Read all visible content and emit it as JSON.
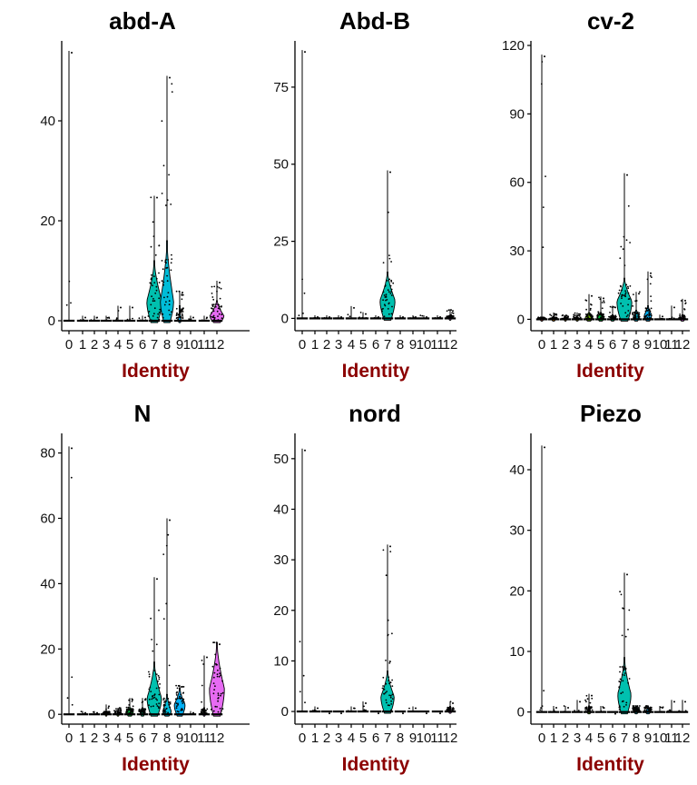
{
  "colors": {
    "xlabel": "#8b0000",
    "clusters": [
      "#f8766d",
      "#e58700",
      "#c99800",
      "#a3a500",
      "#6bb100",
      "#00ba38",
      "#00bf7d",
      "#00c0af",
      "#00bcd8",
      "#00b0f6",
      "#619cff",
      "#b983ff",
      "#e76bf3"
    ]
  },
  "chart_data": [
    {
      "type": "violin",
      "title": "abd-A",
      "xlabel": "Identity",
      "categories": [
        "0",
        "1",
        "2",
        "3",
        "4",
        "5",
        "6",
        "7",
        "8",
        "9",
        "10",
        "11",
        "12"
      ],
      "ylim": [
        -2,
        56
      ],
      "yticks": [
        0,
        20,
        40
      ],
      "max": [
        54,
        1,
        1,
        1,
        3,
        3,
        1,
        25,
        49,
        6,
        1,
        1,
        8
      ],
      "width": [
        0.04,
        0.05,
        0.05,
        0.05,
        0.05,
        0.05,
        0.05,
        0.62,
        0.55,
        0.12,
        0.05,
        0.05,
        0.58
      ],
      "body_top": [
        0,
        0,
        0,
        0,
        0,
        0,
        0,
        12,
        16,
        3,
        0,
        0,
        4
      ],
      "center": [
        0,
        0,
        0,
        0,
        0,
        0,
        0,
        4,
        4,
        0,
        0,
        0,
        1
      ]
    },
    {
      "type": "violin",
      "title": "Abd-B",
      "xlabel": "Identity",
      "categories": [
        "0",
        "1",
        "2",
        "3",
        "4",
        "5",
        "6",
        "7",
        "8",
        "9",
        "10",
        "11",
        "12"
      ],
      "ylim": [
        -4,
        90
      ],
      "yticks": [
        0,
        25,
        50,
        75
      ],
      "max": [
        87,
        1,
        1,
        1,
        4,
        2,
        1,
        48,
        1,
        1,
        1,
        1,
        3
      ],
      "width": [
        0.04,
        0.05,
        0.05,
        0.05,
        0.05,
        0.05,
        0.05,
        0.62,
        0.05,
        0.05,
        0.05,
        0.05,
        0.1
      ],
      "body_top": [
        0,
        0,
        0,
        0,
        0,
        0,
        0,
        15,
        0,
        0,
        0,
        0,
        1
      ],
      "center": [
        0,
        0,
        0,
        0,
        0,
        0,
        0,
        6,
        0,
        0,
        0,
        0,
        0
      ]
    },
    {
      "type": "violin",
      "title": "cv-2",
      "xlabel": "Identity",
      "categories": [
        "0",
        "1",
        "2",
        "3",
        "4",
        "5",
        "6",
        "7",
        "8",
        "9",
        "10",
        "11",
        "12"
      ],
      "ylim": [
        -5,
        122
      ],
      "yticks": [
        0,
        30,
        60,
        90,
        120
      ],
      "max": [
        116,
        3,
        2,
        3,
        11,
        10,
        6,
        64,
        12,
        21,
        2,
        6,
        9
      ],
      "width": [
        0.12,
        0.15,
        0.1,
        0.12,
        0.3,
        0.28,
        0.18,
        0.62,
        0.25,
        0.3,
        0.08,
        0.08,
        0.18
      ],
      "body_top": [
        1,
        1,
        1,
        1,
        3,
        3,
        2,
        18,
        4,
        6,
        0,
        0,
        2
      ],
      "center": [
        0,
        0,
        0,
        0,
        1,
        1,
        0,
        8,
        1,
        2,
        0,
        0,
        0
      ]
    },
    {
      "type": "violin",
      "title": "N",
      "xlabel": "Identity",
      "categories": [
        "0",
        "1",
        "2",
        "3",
        "4",
        "5",
        "6",
        "7",
        "8",
        "9",
        "10",
        "11",
        "12"
      ],
      "ylim": [
        -3,
        86
      ],
      "yticks": [
        0,
        20,
        40,
        60,
        80
      ],
      "max": [
        82,
        1,
        1,
        3,
        2,
        5,
        5,
        42,
        60,
        9,
        1,
        18,
        22
      ],
      "width": [
        0.04,
        0.05,
        0.05,
        0.08,
        0.1,
        0.3,
        0.2,
        0.6,
        0.35,
        0.45,
        0.05,
        0.1,
        0.62
      ],
      "body_top": [
        0,
        0,
        0,
        1,
        1,
        2,
        2,
        16,
        6,
        8,
        0,
        2,
        22
      ],
      "center": [
        0,
        0,
        0,
        0,
        0,
        1,
        1,
        5,
        1,
        3,
        0,
        0,
        8
      ]
    },
    {
      "type": "violin",
      "title": "nord",
      "xlabel": "Identity",
      "categories": [
        "0",
        "1",
        "2",
        "3",
        "4",
        "5",
        "6",
        "7",
        "8",
        "9",
        "10",
        "11",
        "12"
      ],
      "ylim": [
        -2.5,
        55
      ],
      "yticks": [
        0,
        10,
        20,
        30,
        40,
        50
      ],
      "max": [
        52,
        1,
        0,
        0,
        1,
        2,
        0,
        33,
        0,
        1,
        0,
        0,
        2
      ],
      "width": [
        0.04,
        0.05,
        0.05,
        0.05,
        0.05,
        0.05,
        0.05,
        0.55,
        0.05,
        0.05,
        0.05,
        0.05,
        0.12
      ],
      "body_top": [
        0,
        0,
        0,
        0,
        0,
        0,
        0,
        8,
        0,
        0,
        0,
        0,
        1
      ],
      "center": [
        0,
        0,
        0,
        0,
        0,
        0,
        0,
        3,
        0,
        0,
        0,
        0,
        0
      ]
    },
    {
      "type": "violin",
      "title": "Piezo",
      "xlabel": "Identity",
      "categories": [
        "0",
        "1",
        "2",
        "3",
        "4",
        "5",
        "6",
        "7",
        "8",
        "9",
        "10",
        "11",
        "12"
      ],
      "ylim": [
        -2,
        46
      ],
      "yticks": [
        0,
        10,
        20,
        30,
        40
      ],
      "max": [
        44,
        1,
        1,
        2,
        3,
        1,
        0,
        23,
        1,
        1,
        1,
        2,
        2
      ],
      "width": [
        0.04,
        0.05,
        0.05,
        0.05,
        0.15,
        0.05,
        0.05,
        0.55,
        0.15,
        0.2,
        0.05,
        0.08,
        0.08
      ],
      "body_top": [
        0,
        0,
        0,
        0,
        1,
        0,
        0,
        9,
        1,
        1,
        0,
        0,
        0
      ],
      "center": [
        0,
        0,
        0,
        0,
        0,
        0,
        0,
        3,
        0,
        0,
        0,
        0,
        0
      ]
    }
  ]
}
